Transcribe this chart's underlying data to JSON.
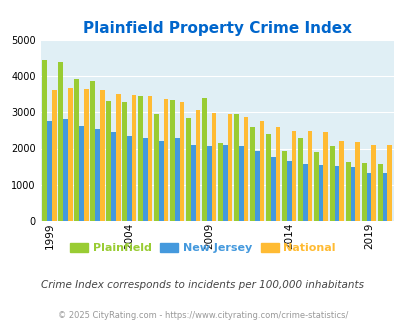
{
  "title": "Plainfield Property Crime Index",
  "title_color": "#0066cc",
  "years": [
    1999,
    2000,
    2001,
    2002,
    2003,
    2004,
    2005,
    2006,
    2007,
    2008,
    2009,
    2010,
    2011,
    2012,
    2013,
    2014,
    2015,
    2016,
    2017,
    2018,
    2019,
    2020
  ],
  "plainfield": [
    4450,
    4380,
    3920,
    3850,
    3300,
    3280,
    3450,
    2950,
    3330,
    2850,
    3400,
    2150,
    2950,
    2580,
    2400,
    1930,
    2300,
    1900,
    2080,
    1620,
    1600,
    1580
  ],
  "new_jersey": [
    2760,
    2820,
    2620,
    2550,
    2460,
    2350,
    2290,
    2220,
    2290,
    2100,
    2080,
    2100,
    2060,
    1930,
    1760,
    1650,
    1560,
    1550,
    1520,
    1480,
    1330,
    1320
  ],
  "national": [
    3600,
    3670,
    3640,
    3600,
    3510,
    3480,
    3450,
    3360,
    3280,
    3060,
    2970,
    2940,
    2870,
    2760,
    2600,
    2490,
    2490,
    2460,
    2200,
    2190,
    2110,
    2100
  ],
  "plainfield_color": "#99cc33",
  "new_jersey_color": "#4499dd",
  "national_color": "#ffbb33",
  "bg_color": "#e0eff5",
  "ylim": [
    0,
    5000
  ],
  "yticks": [
    0,
    1000,
    2000,
    3000,
    4000,
    5000
  ],
  "xtick_labels": [
    "1999",
    "2004",
    "2009",
    "2014",
    "2019"
  ],
  "xtick_positions": [
    1999,
    2004,
    2009,
    2014,
    2019
  ],
  "subtitle": "Crime Index corresponds to incidents per 100,000 inhabitants",
  "footer": "© 2025 CityRating.com - https://www.cityrating.com/crime-statistics/",
  "subtitle_color": "#444444",
  "footer_color": "#999999",
  "legend_labels": [
    "Plainfield",
    "New Jersey",
    "National"
  ]
}
